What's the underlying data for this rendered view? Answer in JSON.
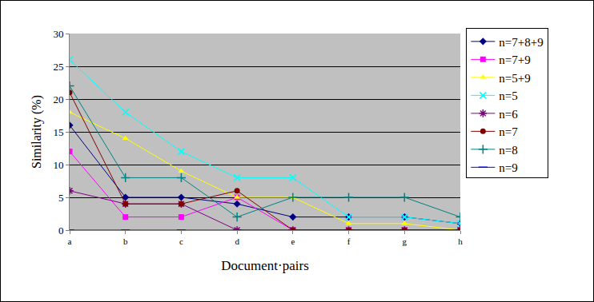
{
  "chart_data": {
    "type": "line",
    "x_label": "Document·pairs",
    "y_label": "Similarity (%)",
    "categories": [
      "a",
      "b",
      "c",
      "d",
      "e",
      "f",
      "g",
      "h"
    ],
    "ylim": [
      0,
      30
    ],
    "yticks": [
      0,
      5,
      10,
      15,
      20,
      25,
      30
    ],
    "grid": true,
    "legend": "right",
    "series": [
      {
        "name": "n=7+8+9",
        "color": "#000080",
        "marker": "diamond",
        "values": [
          16,
          5,
          5,
          4,
          2,
          2,
          2,
          1
        ]
      },
      {
        "name": "n=7+9",
        "color": "#FF00FF",
        "marker": "square",
        "values": [
          12,
          2,
          2,
          5,
          0,
          0,
          0,
          0
        ]
      },
      {
        "name": "n=5+9",
        "color": "#FFFF00",
        "marker": "triangle",
        "values": [
          18,
          14,
          9,
          5,
          5,
          1,
          1,
          0
        ]
      },
      {
        "name": "n=5",
        "color": "#00FFFF",
        "marker": "x",
        "values": [
          26,
          18,
          12,
          8,
          8,
          2,
          2,
          1
        ]
      },
      {
        "name": "n=6",
        "color": "#800080",
        "marker": "asterisk",
        "values": [
          6,
          4,
          4,
          0,
          0,
          0,
          0,
          0
        ]
      },
      {
        "name": "n=7",
        "color": "#800000",
        "marker": "circle",
        "values": [
          21,
          4,
          4,
          6,
          0,
          0,
          0,
          0
        ]
      },
      {
        "name": "n=8",
        "color": "#008080",
        "marker": "cross",
        "values": [
          22,
          8,
          8,
          2,
          5,
          5,
          5,
          2
        ]
      },
      {
        "name": "n=9",
        "color": "#0000FF",
        "marker": "dash",
        "values": [
          0,
          0,
          0,
          0,
          0,
          0,
          0,
          0
        ]
      }
    ]
  }
}
